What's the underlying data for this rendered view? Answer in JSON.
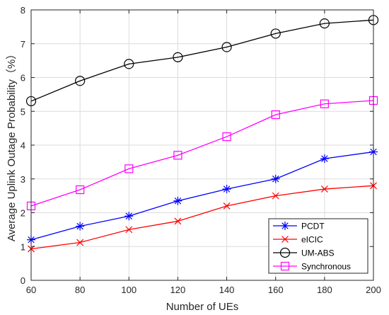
{
  "chart_data": {
    "type": "line",
    "xlabel": "Number of UEs",
    "ylabel": "Average Uplink Outage Probability（%）",
    "xlim": [
      60,
      200
    ],
    "ylim": [
      0,
      8
    ],
    "x_ticks": [
      60,
      80,
      100,
      120,
      140,
      160,
      180,
      200
    ],
    "y_ticks": [
      0,
      1,
      2,
      3,
      4,
      5,
      6,
      7,
      8
    ],
    "grid": true,
    "legend_position": "bottom-right",
    "x": [
      60,
      80,
      100,
      120,
      140,
      160,
      180,
      200
    ],
    "series": [
      {
        "name": "PCDT",
        "color": "#0000ff",
        "marker": "asterisk",
        "values": [
          1.2,
          1.6,
          1.9,
          2.35,
          2.7,
          3.0,
          3.6,
          3.8
        ]
      },
      {
        "name": "eICIC",
        "color": "#ff0000",
        "marker": "x",
        "values": [
          0.93,
          1.12,
          1.5,
          1.75,
          2.2,
          2.5,
          2.7,
          2.8
        ]
      },
      {
        "name": "UM-ABS",
        "color": "#000000",
        "marker": "circle",
        "values": [
          5.3,
          5.9,
          6.4,
          6.6,
          6.9,
          7.3,
          7.6,
          7.7
        ]
      },
      {
        "name": "Synchronous",
        "color": "#ff00ff",
        "marker": "square",
        "values": [
          2.2,
          2.68,
          3.3,
          3.7,
          4.25,
          4.9,
          5.22,
          5.32
        ]
      }
    ]
  }
}
